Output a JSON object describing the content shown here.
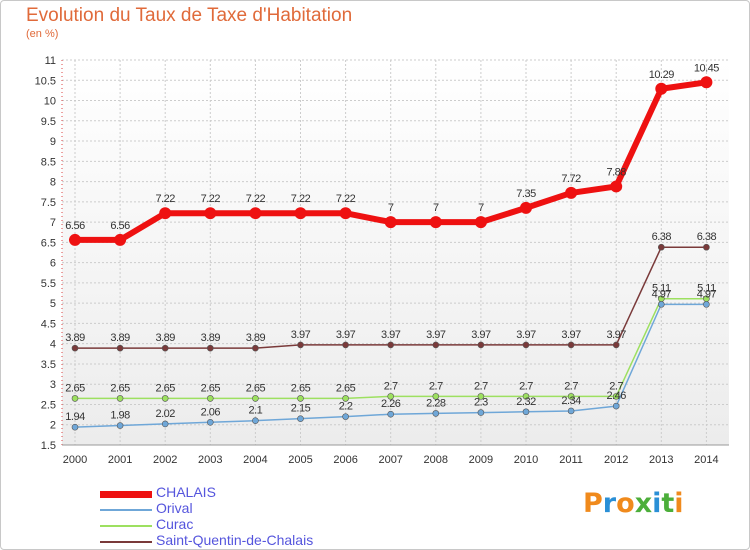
{
  "header": {
    "title": "Evolution du Taux de Taxe d'Habitation",
    "subtitle": "(en %)"
  },
  "logo_text": "Proxiti",
  "colors": {
    "CHALAIS": "#ee1111",
    "Orival": "#6fa7d8",
    "Curac": "#9de060",
    "Saint-Quentin-de-Chalais": "#7a3a3a",
    "grid": "#cccccc",
    "axis_text": "#333333"
  },
  "chart_data": {
    "type": "line",
    "x": [
      "2000",
      "2001",
      "2002",
      "2003",
      "2004",
      "2005",
      "2006",
      "2007",
      "2008",
      "2009",
      "2010",
      "2011",
      "2012",
      "2013",
      "2014"
    ],
    "ylim": [
      1.5,
      11
    ],
    "yticks": [
      "1.5",
      "2",
      "2.5",
      "3",
      "3.5",
      "4",
      "4.5",
      "5",
      "5.5",
      "6",
      "6.5",
      "7",
      "7.5",
      "8",
      "8.5",
      "9",
      "9.5",
      "10",
      "10.5",
      "11"
    ],
    "legend": "bottom-left",
    "grid": true,
    "series": [
      {
        "name": "CHALAIS",
        "values": [
          6.56,
          6.56,
          7.22,
          7.22,
          7.22,
          7.22,
          7.22,
          7,
          7,
          7,
          7.35,
          7.72,
          7.88,
          10.29,
          10.45
        ],
        "labels": [
          "6.56",
          "6.56",
          "7.22",
          "7.22",
          "7.22",
          "7.22",
          "7.22",
          "7",
          "7",
          "7",
          "7.35",
          "7.72",
          "7.88",
          "10.29",
          "10.45"
        ]
      },
      {
        "name": "Orival",
        "values": [
          1.94,
          1.98,
          2.02,
          2.06,
          2.1,
          2.15,
          2.2,
          2.26,
          2.28,
          2.3,
          2.32,
          2.34,
          2.46,
          4.97,
          4.97
        ],
        "labels": [
          "1.94",
          "1.98",
          "2.02",
          "2.06",
          "2.1",
          "2.15",
          "2.2",
          "2.26",
          "2.28",
          "2.3",
          "2.32",
          "2.34",
          "2.46",
          "4.97",
          "4.97"
        ]
      },
      {
        "name": "Curac",
        "values": [
          2.65,
          2.65,
          2.65,
          2.65,
          2.65,
          2.65,
          2.65,
          2.7,
          2.7,
          2.7,
          2.7,
          2.7,
          2.7,
          5.11,
          5.11
        ],
        "labels": [
          "2.65",
          "2.65",
          "2.65",
          "2.65",
          "2.65",
          "2.65",
          "2.65",
          "2.7",
          "2.7",
          "2.7",
          "2.7",
          "2.7",
          "2.7",
          "5.11",
          "5.11"
        ]
      },
      {
        "name": "Saint-Quentin-de-Chalais",
        "values": [
          3.89,
          3.89,
          3.89,
          3.89,
          3.89,
          3.97,
          3.97,
          3.97,
          3.97,
          3.97,
          3.97,
          3.97,
          3.97,
          6.38,
          6.38
        ],
        "labels": [
          "3.89",
          "3.89",
          "3.89",
          "3.89",
          "3.89",
          "3.97",
          "3.97",
          "3.97",
          "3.97",
          "3.97",
          "3.97",
          "3.97",
          "3.97",
          "6.38",
          "6.38"
        ]
      }
    ]
  }
}
